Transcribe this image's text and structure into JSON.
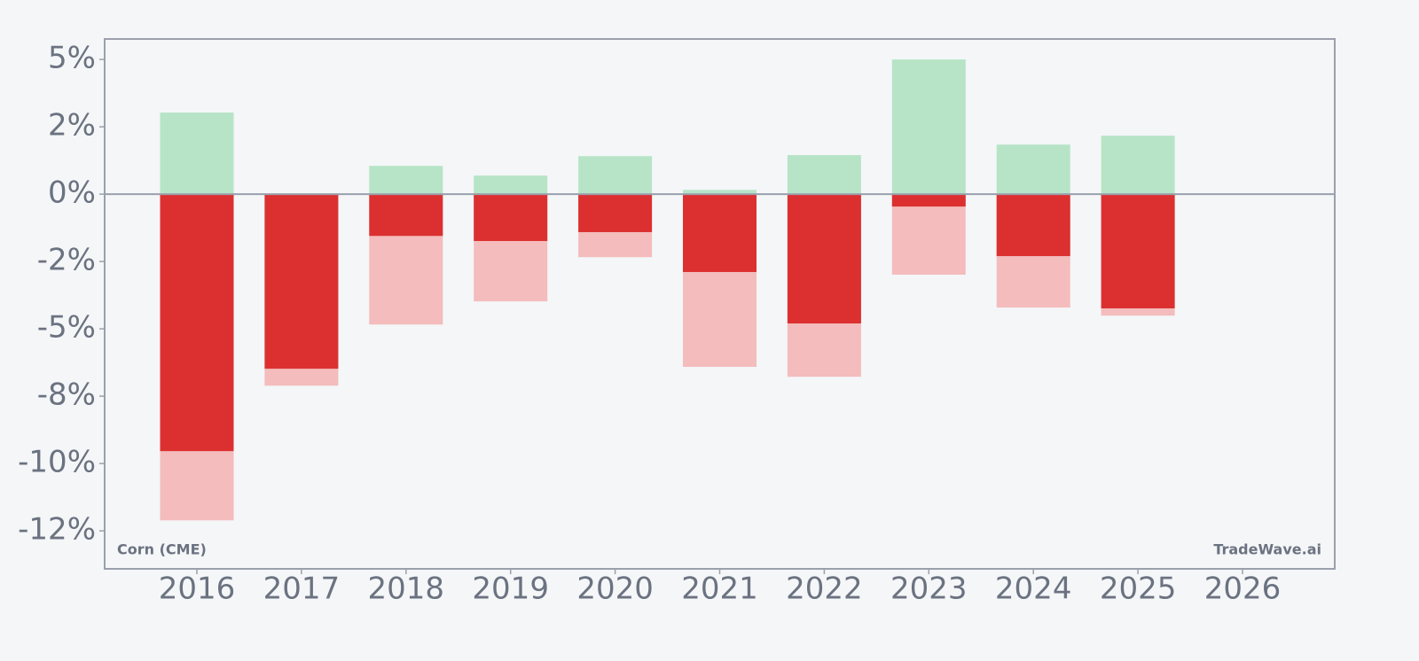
{
  "chart_data": {
    "type": "bar",
    "categories": [
      "2016",
      "2017",
      "2018",
      "2019",
      "2020",
      "2021",
      "2022",
      "2023",
      "2024",
      "2025",
      "2026"
    ],
    "series": [
      {
        "color": "#f4bcbc",
        "values": [
          -12.11,
          -7.11,
          -4.84,
          -3.98,
          -2.34,
          -6.41,
          -6.78,
          -2.99,
          -4.21,
          -4.51,
          null
        ]
      },
      {
        "color": "#dc3030",
        "values": [
          -9.54,
          -6.48,
          -1.55,
          -1.74,
          -1.41,
          -2.89,
          -4.8,
          -0.46,
          -2.3,
          -4.24,
          null
        ]
      },
      {
        "color": "#b7e4c7",
        "values": [
          3.03,
          null,
          1.05,
          0.69,
          1.41,
          0.16,
          1.45,
          5.0,
          1.84,
          2.17,
          null
        ]
      }
    ],
    "ylim": [
      -13.91,
      5.76
    ],
    "yticks": [
      {
        "value": 5,
        "label": "5%"
      },
      {
        "value": 2.5,
        "label": "2%"
      },
      {
        "value": 0,
        "label": "0%"
      },
      {
        "value": -2.5,
        "label": "-2%"
      },
      {
        "value": -5,
        "label": "-5%"
      },
      {
        "value": -7.5,
        "label": "-8%"
      },
      {
        "value": -10,
        "label": "-10%"
      },
      {
        "value": -12.5,
        "label": "-12%"
      }
    ],
    "annotations": [
      "Corn (CME)",
      "TradeWave.ai"
    ]
  }
}
